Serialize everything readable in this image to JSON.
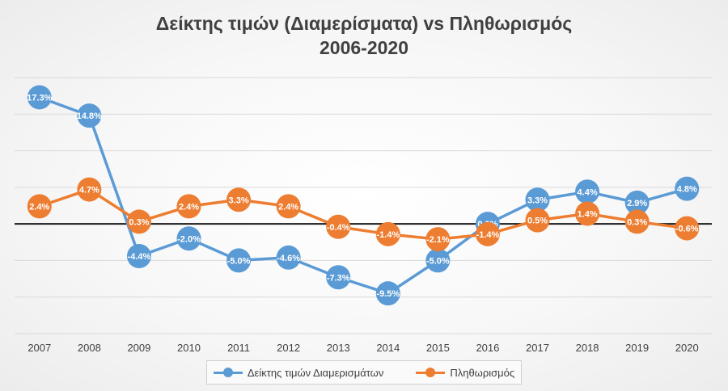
{
  "chart_data": {
    "type": "line",
    "title_line1": "Δείκτης τιμών (Διαμερίσματα) vs Πληθωρισμός",
    "title_line2": "2006-2020",
    "categories": [
      "2007",
      "2008",
      "2009",
      "2010",
      "2011",
      "2012",
      "2013",
      "2014",
      "2015",
      "2016",
      "2017",
      "2018",
      "2019",
      "2020"
    ],
    "ylim": [
      -15,
      20
    ],
    "y_axis_labels_shown": false,
    "grid": true,
    "zero_line": true,
    "legend_position": "bottom",
    "series": [
      {
        "name": "Δείκτης τιμών Διαμερισμάτων",
        "color": "#5b9bd5",
        "values": [
          17.3,
          14.8,
          -4.4,
          -2.0,
          -5.0,
          -4.6,
          -7.3,
          -9.5,
          -5.0,
          0.0,
          3.3,
          4.4,
          2.9,
          4.8
        ],
        "labels": [
          "17.3%",
          "14.8%",
          "-4.4%",
          "-2.0%",
          "-5.0%",
          "-4.6%",
          "-7.3%",
          "-9.5%",
          "-5.0%",
          "0.0%",
          "3.3%",
          "4.4%",
          "2.9%",
          "4.8%"
        ]
      },
      {
        "name": "Πληθωρισμός",
        "color": "#ed7d31",
        "values": [
          2.4,
          4.7,
          0.3,
          2.4,
          3.3,
          2.4,
          -0.4,
          -1.4,
          -2.1,
          -1.4,
          0.5,
          1.4,
          0.3,
          -0.6
        ],
        "labels": [
          "2.4%",
          "4.7%",
          "0.3%",
          "2.4%",
          "3.3%",
          "2.4%",
          "-0.4%",
          "-1.4%",
          "-2.1%",
          "-1.4%",
          "0.5%",
          "1.4%",
          "0.3%",
          "-0.6%"
        ]
      }
    ]
  }
}
